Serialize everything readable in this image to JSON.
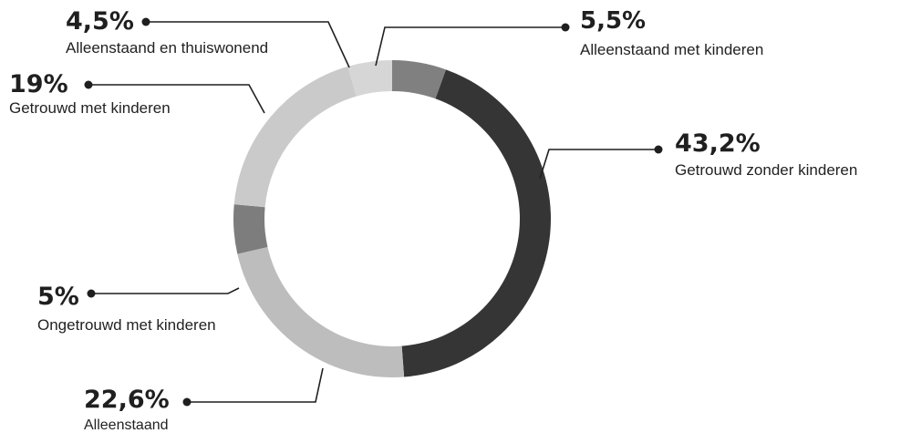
{
  "chart_data": {
    "type": "pie",
    "donut": true,
    "slices": [
      {
        "label": "Alleenstaand met kinderen",
        "value": 5.5,
        "value_label": "5,5%",
        "color": "#808080"
      },
      {
        "label": "Getrouwd zonder kinderen",
        "value": 43.2,
        "value_label": "43,2%",
        "color": "#353535"
      },
      {
        "label": "Alleenstaand",
        "value": 22.6,
        "value_label": "22,6%",
        "color": "#bdbdbd"
      },
      {
        "label": "Ongetrouwd met kinderen",
        "value": 5,
        "value_label": "5%",
        "color": "#7d7d7d"
      },
      {
        "label": "Getrouwd met kinderen",
        "value": 19,
        "value_label": "19%",
        "color": "#cacaca"
      },
      {
        "label": "Alleenstaand en thuiswonend",
        "value": 4.5,
        "value_label": "4,5%",
        "color": "#d6d6d6"
      }
    ]
  }
}
